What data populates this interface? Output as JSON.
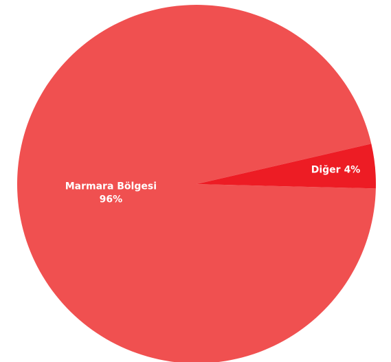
{
  "chart_data": {
    "type": "pie",
    "categories": [
      "Marmara Bölgesi",
      "Diğer"
    ],
    "values": [
      96,
      4
    ],
    "value_labels": [
      "96%",
      "4%"
    ],
    "colors": [
      "#f05050",
      "#ed1c24"
    ]
  }
}
